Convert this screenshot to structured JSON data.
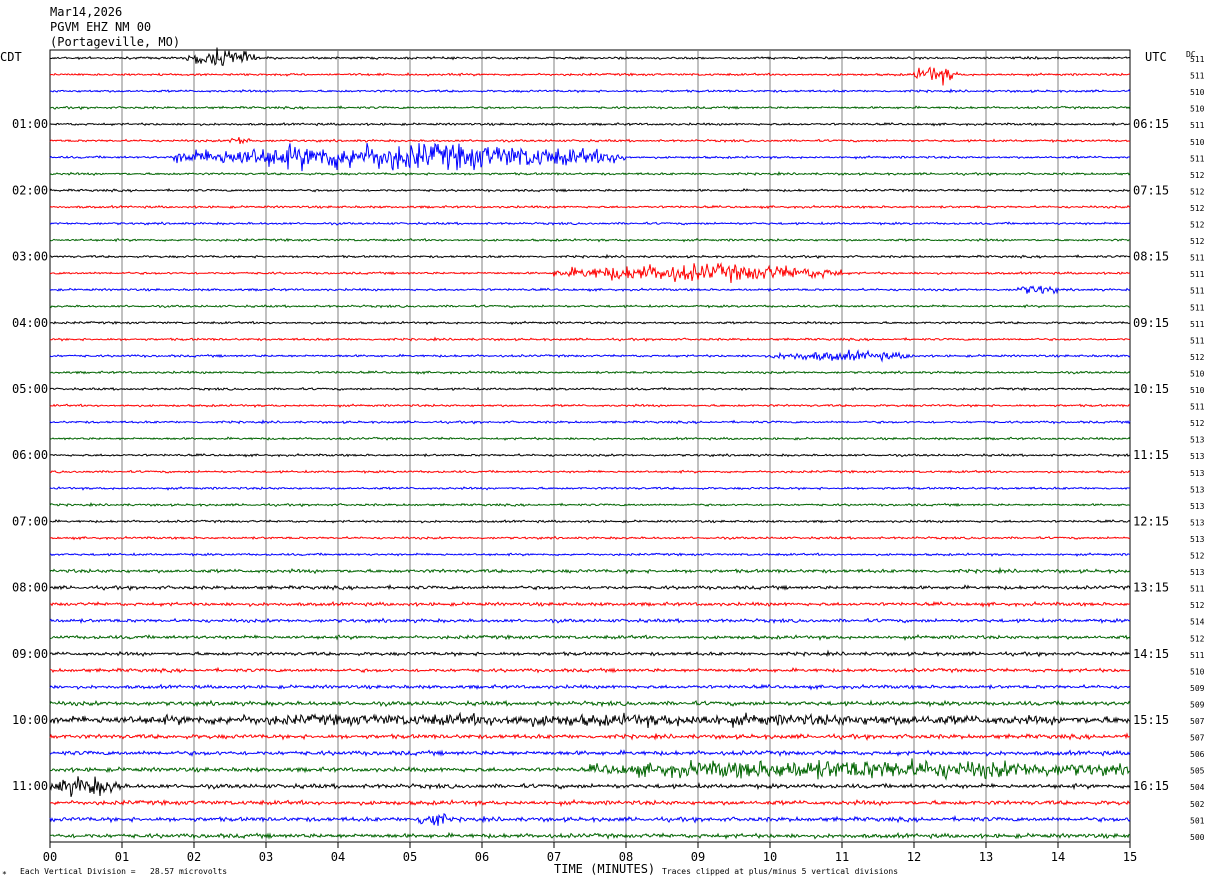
{
  "header": {
    "date": "Mar14,2026",
    "station": "PGVM EHZ NM 00",
    "location": "(Portageville, MO)"
  },
  "left_timezone": "CDT",
  "right_timezone": "UTC",
  "dc_label": "DC",
  "footer": {
    "scale": "Each Vertical Division =   28.57 microvolts",
    "xlabel": "TIME (MINUTES)",
    "clip_note": "Traces clipped at plus/minus 5 vertical divisions",
    "corner_mark": "*"
  },
  "chart_data": {
    "type": "line",
    "title": "PGVM EHZ NM 00",
    "xlabel": "TIME (MINUTES)",
    "xlim": [
      0,
      15
    ],
    "x_ticks": [
      "00",
      "01",
      "02",
      "03",
      "04",
      "05",
      "06",
      "07",
      "08",
      "09",
      "10",
      "11",
      "12",
      "13",
      "14",
      "15"
    ],
    "grid": "vertical lines every minute",
    "trace_count": 48,
    "trace_colors": [
      "#000000",
      "#ff0000",
      "#0000ff",
      "#006400"
    ],
    "left_hour_labels": [
      "01:00",
      "02:00",
      "03:00",
      "04:00",
      "05:00",
      "06:00",
      "07:00",
      "08:00",
      "09:00",
      "10:00",
      "11:00"
    ],
    "right_hour_labels": [
      "06:15",
      "07:15",
      "08:15",
      "09:15",
      "10:15",
      "11:15",
      "12:15",
      "13:15",
      "14:15",
      "15:15",
      "16:15"
    ],
    "dc_offsets": [
      511,
      511,
      510,
      510,
      511,
      510,
      511,
      512,
      512,
      512,
      512,
      512,
      511,
      511,
      511,
      511,
      511,
      511,
      512,
      510,
      510,
      511,
      512,
      513,
      513,
      513,
      513,
      513,
      513,
      513,
      512,
      513,
      511,
      512,
      514,
      512,
      511,
      510,
      509,
      509,
      507,
      507,
      506,
      505,
      504,
      502,
      501,
      500
    ],
    "events": [
      {
        "trace": 0,
        "minute_start": 1.9,
        "minute_end": 2.9,
        "amplitude": "moderate"
      },
      {
        "trace": 1,
        "minute_start": 12.0,
        "minute_end": 12.6,
        "amplitude": "moderate"
      },
      {
        "trace": 5,
        "minute_start": 2.5,
        "minute_end": 2.8,
        "amplitude": "small"
      },
      {
        "trace": 6,
        "minute_start": 1.7,
        "minute_end": 8.0,
        "amplitude": "large"
      },
      {
        "trace": 13,
        "minute_start": 7.0,
        "minute_end": 11.0,
        "amplitude": "moderate"
      },
      {
        "trace": 14,
        "minute_start": 13.4,
        "minute_end": 14.0,
        "amplitude": "small"
      },
      {
        "trace": 18,
        "minute_start": 10.0,
        "minute_end": 12.0,
        "amplitude": "small"
      },
      {
        "trace": 40,
        "minute_start": 0.0,
        "minute_end": 15.0,
        "amplitude": "small"
      },
      {
        "trace": 43,
        "minute_start": 7.5,
        "minute_end": 15.0,
        "amplitude": "moderate"
      },
      {
        "trace": 44,
        "minute_start": 0.0,
        "minute_end": 1.0,
        "amplitude": "moderate"
      },
      {
        "trace": 46,
        "minute_start": 5.1,
        "minute_end": 5.5,
        "amplitude": "moderate"
      }
    ]
  }
}
